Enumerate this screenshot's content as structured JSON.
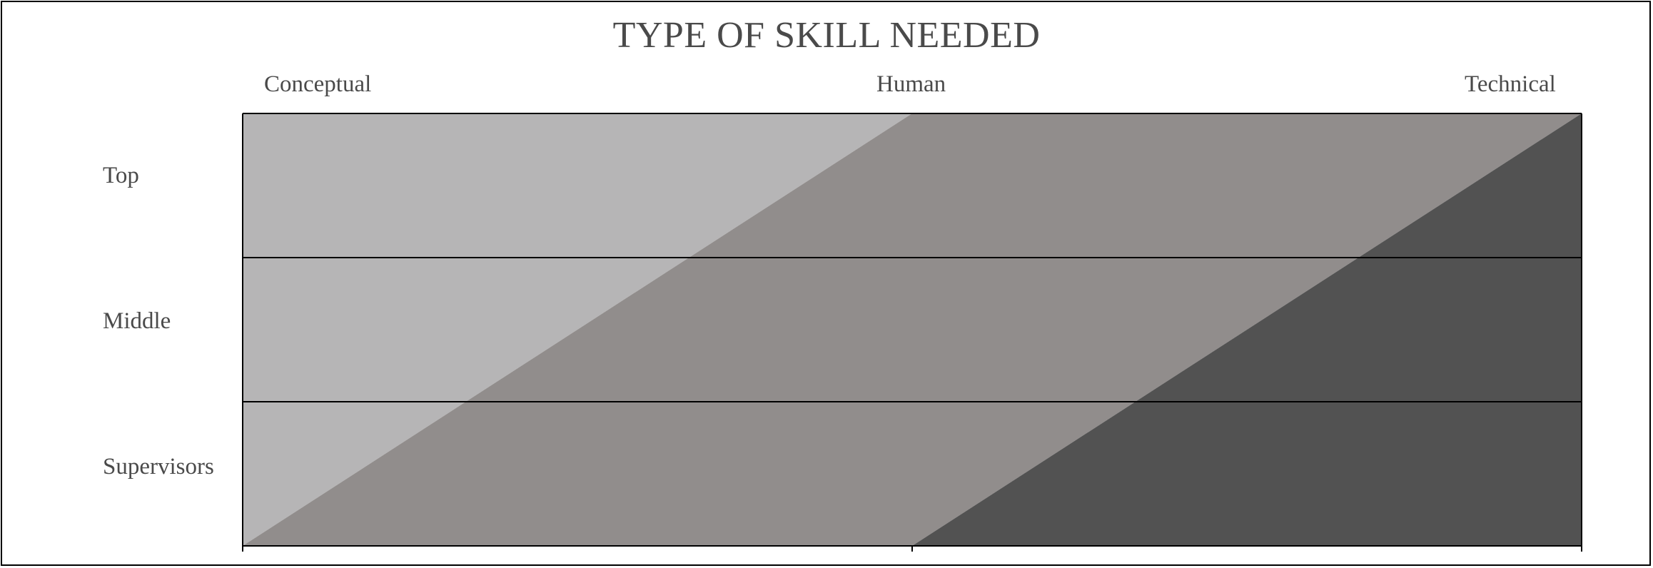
{
  "title": "TYPE OF SKILL NEEDED",
  "columns": [
    "Conceptual",
    "Human",
    "Technical"
  ],
  "rows": [
    "Top",
    "Middle",
    "Supervisors"
  ],
  "colors": {
    "conceptual": "#b6b5b6",
    "human": "#918d8c",
    "technical": "#525252",
    "text": "#4a4a4a",
    "lines": "#000000"
  }
}
